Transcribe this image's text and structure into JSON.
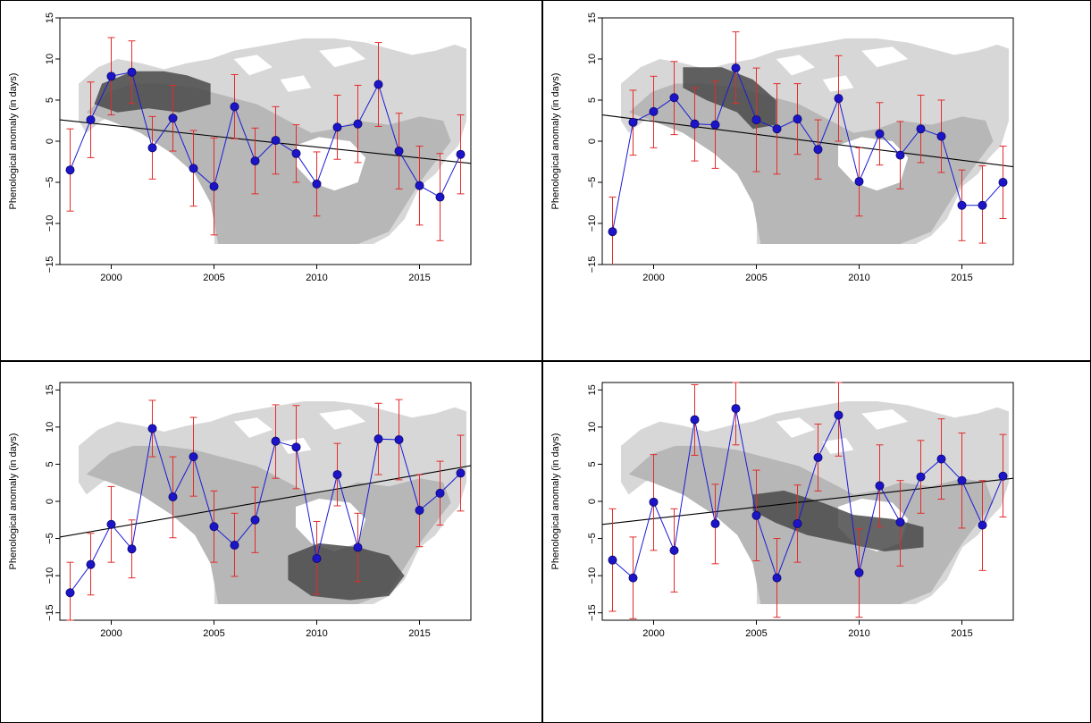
{
  "colors": {
    "points": "#1d14c7",
    "point_stroke": "#0a0a6a",
    "series_line": "#1a1ad6",
    "error_bars": "#e32b2b",
    "trend_line": "#000000",
    "map_land": "#d7d7d7",
    "map_vegetation": "#b7b7b7",
    "map_highlight": "#4a4a4a",
    "panel_border": "#000000"
  },
  "chart_data": [
    {
      "type": "scatter",
      "panel_position": "top-left",
      "title": "",
      "xlabel": "",
      "ylabel": "Phenological anomaly (in days)",
      "xlim": [
        1997.5,
        2017.5
      ],
      "ylim": [
        -15,
        15
      ],
      "xticks": [
        2000,
        2005,
        2010,
        2015
      ],
      "yticks": [
        -15,
        -10,
        -5,
        0,
        5,
        10,
        15
      ],
      "x": [
        1998,
        1999,
        2000,
        2001,
        2002,
        2003,
        2004,
        2005,
        2006,
        2007,
        2008,
        2009,
        2010,
        2011,
        2012,
        2013,
        2014,
        2015,
        2016,
        2017
      ],
      "y": [
        -3.5,
        2.6,
        7.9,
        8.4,
        -0.8,
        2.8,
        -3.3,
        -5.5,
        4.2,
        -2.4,
        0.1,
        -1.5,
        -5.2,
        1.7,
        2.1,
        6.9,
        -1.2,
        -5.4,
        -6.8,
        -1.6
      ],
      "err_low": [
        -8.5,
        -2.0,
        3.2,
        4.6,
        -4.6,
        -1.2,
        -7.9,
        -11.4,
        0.3,
        -6.4,
        -4.0,
        -5.0,
        -9.1,
        -2.2,
        -2.6,
        1.8,
        -5.8,
        -10.2,
        -12.1,
        -6.4
      ],
      "err_high": [
        1.5,
        7.2,
        12.6,
        12.2,
        3.0,
        6.8,
        1.3,
        0.4,
        8.1,
        1.6,
        4.2,
        2.0,
        -1.3,
        5.6,
        6.8,
        12.0,
        3.4,
        -0.6,
        -1.5,
        3.2
      ],
      "trend": {
        "x": [
          1997.5,
          2017.5
        ],
        "y": [
          2.6,
          -2.7
        ]
      },
      "map_highlight": "northwest"
    },
    {
      "type": "scatter",
      "panel_position": "top-right",
      "title": "",
      "xlabel": "",
      "ylabel": "Phenological anomaly (in days)",
      "xlim": [
        1997.5,
        2017.5
      ],
      "ylim": [
        -15,
        15
      ],
      "xticks": [
        2000,
        2005,
        2010,
        2015
      ],
      "yticks": [
        -15,
        -10,
        -5,
        0,
        5,
        10,
        15
      ],
      "x": [
        1998,
        1999,
        2000,
        2001,
        2002,
        2003,
        2004,
        2005,
        2006,
        2007,
        2008,
        2009,
        2010,
        2011,
        2012,
        2013,
        2014,
        2015,
        2016,
        2017
      ],
      "y": [
        -11.0,
        2.3,
        3.6,
        5.3,
        2.1,
        2.0,
        8.9,
        2.6,
        1.5,
        2.7,
        -1.0,
        5.2,
        -4.9,
        0.9,
        -1.7,
        1.5,
        0.6,
        -7.8,
        -7.8,
        -5.0
      ],
      "err_low": [
        -15.4,
        -1.7,
        -0.8,
        0.8,
        -2.4,
        -3.3,
        4.6,
        -3.7,
        -4.0,
        -1.6,
        -4.6,
        0.0,
        -9.1,
        -2.9,
        -5.8,
        -2.6,
        -3.8,
        -12.1,
        -12.4,
        -9.4
      ],
      "err_high": [
        -6.8,
        6.2,
        7.9,
        9.7,
        6.5,
        7.3,
        13.3,
        8.9,
        7.0,
        7.0,
        2.6,
        10.4,
        -0.8,
        4.7,
        2.4,
        5.6,
        5.0,
        -3.5,
        -3.0,
        -0.6
      ],
      "trend": {
        "x": [
          1997.5,
          2017.5
        ],
        "y": [
          3.2,
          -3.1
        ]
      },
      "map_highlight": "northwest-yukon"
    },
    {
      "type": "scatter",
      "panel_position": "bottom-left",
      "title": "",
      "xlabel": "",
      "ylabel": "Phenological anomaly (in days)",
      "xlim": [
        1997.5,
        2017.5
      ],
      "ylim": [
        -16,
        16
      ],
      "xticks": [
        2000,
        2005,
        2010,
        2015
      ],
      "yticks": [
        -15,
        -10,
        -5,
        0,
        5,
        10,
        15
      ],
      "x": [
        1998,
        1999,
        2000,
        2001,
        2002,
        2003,
        2004,
        2005,
        2006,
        2007,
        2008,
        2009,
        2010,
        2011,
        2012,
        2013,
        2014,
        2015,
        2016,
        2017
      ],
      "y": [
        -12.3,
        -8.5,
        -3.1,
        -6.4,
        9.8,
        0.6,
        6.0,
        -3.4,
        -5.9,
        -2.5,
        8.1,
        7.3,
        -7.7,
        3.6,
        -6.2,
        8.4,
        8.3,
        -1.2,
        1.1,
        3.8
      ],
      "err_low": [
        -16.0,
        -12.6,
        -8.2,
        -10.3,
        6.0,
        -4.9,
        0.7,
        -8.2,
        -10.1,
        -6.9,
        3.1,
        1.7,
        -12.5,
        -0.6,
        -10.8,
        3.6,
        2.9,
        -6.1,
        -3.2,
        -1.3
      ],
      "err_high": [
        -8.2,
        -4.3,
        2.0,
        -2.5,
        13.6,
        6.0,
        11.3,
        1.4,
        -1.6,
        1.9,
        13.0,
        12.9,
        -2.7,
        7.8,
        -1.6,
        13.2,
        13.7,
        3.6,
        5.4,
        8.9
      ],
      "trend": {
        "x": [
          1997.5,
          2017.5
        ],
        "y": [
          -4.8,
          4.8
        ]
      },
      "map_highlight": "southeast"
    },
    {
      "type": "scatter",
      "panel_position": "bottom-right",
      "title": "",
      "xlabel": "",
      "ylabel": "Phenological anomaly (in days)",
      "xlim": [
        1997.5,
        2017.5
      ],
      "ylim": [
        -16,
        16
      ],
      "xticks": [
        2000,
        2005,
        2010,
        2015
      ],
      "yticks": [
        -15,
        -10,
        -5,
        0,
        5,
        10,
        15
      ],
      "x": [
        1998,
        1999,
        2000,
        2001,
        2002,
        2003,
        2004,
        2005,
        2006,
        2007,
        2008,
        2009,
        2010,
        2011,
        2012,
        2013,
        2014,
        2015,
        2016,
        2017
      ],
      "y": [
        -7.9,
        -10.3,
        -0.1,
        -6.6,
        11.0,
        -3.0,
        12.5,
        -1.9,
        -10.3,
        -3.0,
        5.9,
        11.6,
        -9.6,
        2.1,
        -2.8,
        3.3,
        5.7,
        2.8,
        -3.2,
        3.4
      ],
      "err_low": [
        -14.8,
        -15.8,
        -6.6,
        -12.2,
        6.2,
        -8.4,
        7.6,
        -8.0,
        -15.6,
        -8.2,
        1.4,
        6.1,
        -15.6,
        -3.4,
        -8.7,
        -1.6,
        0.3,
        -3.6,
        -9.3,
        -2.1
      ],
      "err_high": [
        -1.0,
        -4.8,
        6.3,
        -1.0,
        15.7,
        2.3,
        16.0,
        4.2,
        -5.0,
        2.2,
        10.4,
        16.0,
        -3.7,
        7.6,
        2.8,
        8.2,
        11.1,
        9.2,
        2.8,
        9.0
      ],
      "trend": {
        "x": [
          1997.5,
          2017.5
        ],
        "y": [
          -3.1,
          3.1
        ]
      },
      "map_highlight": "central-band"
    }
  ]
}
